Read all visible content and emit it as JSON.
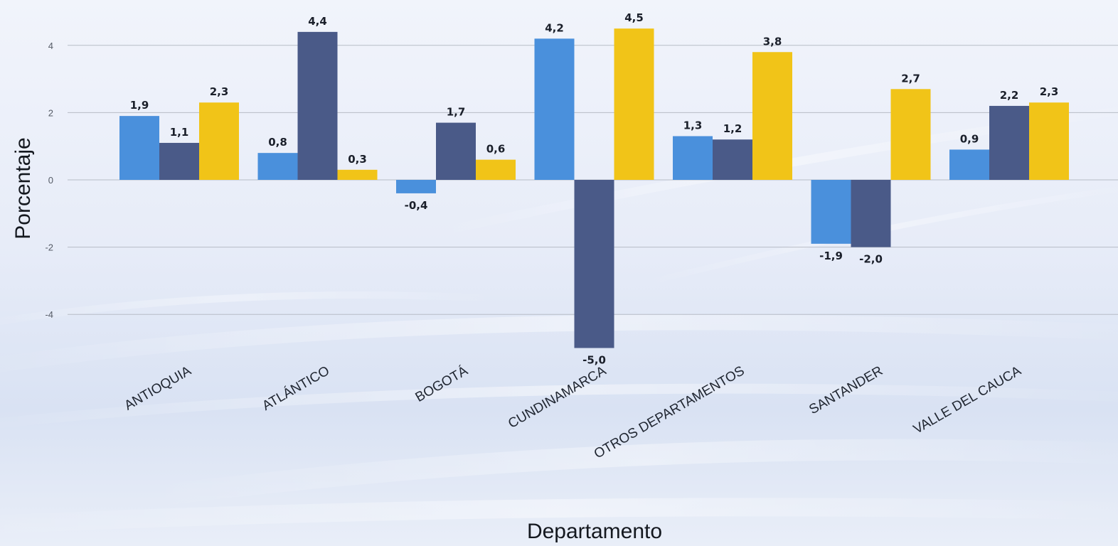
{
  "chart_data": {
    "type": "bar",
    "xlabel": "Departamento",
    "ylabel": "Porcentaje",
    "ylim": [
      -4.8,
      4.8
    ],
    "yticks": [
      4,
      2,
      0,
      -2,
      -4
    ],
    "ytick_labels": [
      "4",
      "2",
      "0",
      "-2",
      "-4"
    ],
    "grid": true,
    "legend": "none",
    "categories": [
      "ANTIOQUIA",
      "ATLÁNTICO",
      "BOGOTÁ",
      "CUNDINAMARCA",
      "OTROS DEPARTAMENTOS",
      "SANTANDER",
      "VALLE DEL CAUCA"
    ],
    "series": [
      {
        "color": "#4a90dc",
        "values": [
          1.9,
          0.8,
          -0.4,
          4.2,
          1.3,
          -1.9,
          0.9
        ],
        "labels": [
          "1,9",
          "0,8",
          "-0,4",
          "4,2",
          "1,3",
          "-1,9",
          "0,9"
        ]
      },
      {
        "color": "#4a5a88",
        "values": [
          1.1,
          4.4,
          1.7,
          -5.0,
          1.2,
          -2.0,
          2.2
        ],
        "labels": [
          "1,1",
          "4,4",
          "1,7",
          "-5,0",
          "1,2",
          "-2,0",
          "2,2"
        ]
      },
      {
        "color": "#f1c418",
        "values": [
          2.3,
          0.3,
          0.6,
          4.5,
          3.8,
          2.7,
          2.3
        ],
        "labels": [
          "2,3",
          "0,3",
          "0,6",
          "4,5",
          "3,8",
          "2,7",
          "2,3"
        ]
      }
    ]
  }
}
